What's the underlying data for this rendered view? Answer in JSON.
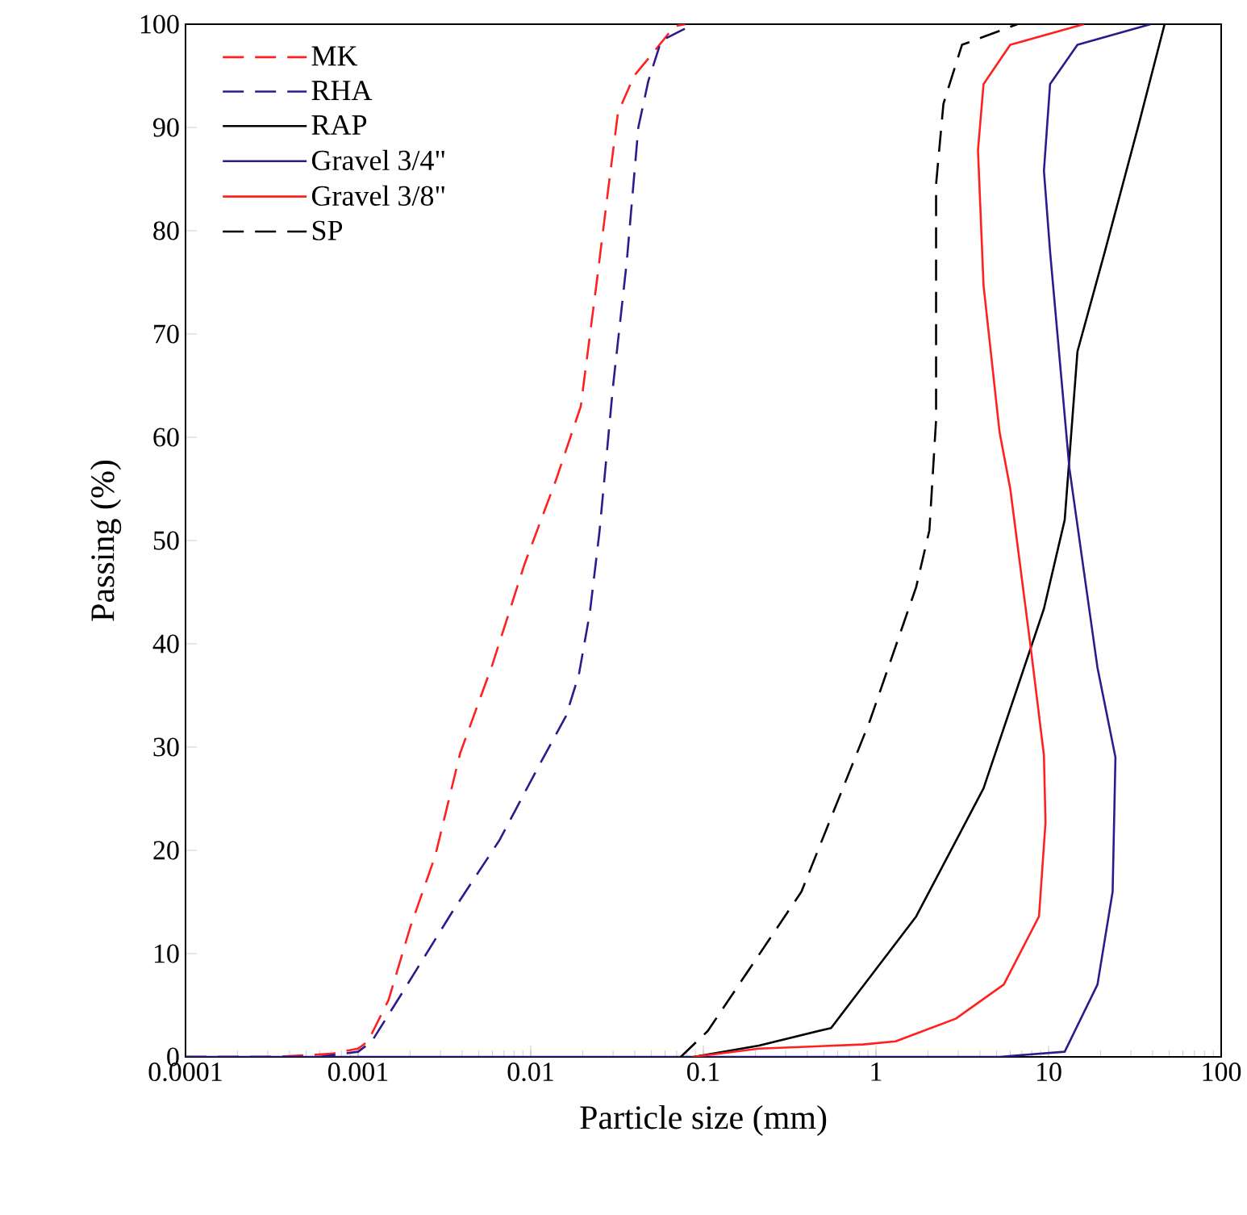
{
  "chart_data": {
    "type": "line",
    "xlabel": "Particle size (mm)",
    "ylabel": "Passing (%)",
    "log": "x",
    "xlim": [
      0.0001,
      100
    ],
    "ylim": [
      0,
      100
    ],
    "xticks": [
      0.0001,
      0.001,
      0.01,
      0.1,
      1,
      10,
      100
    ],
    "yticks": [
      0,
      10,
      20,
      30,
      40,
      50,
      60,
      70,
      80,
      90,
      100
    ],
    "grid": false,
    "legend": "top left",
    "marker": "none",
    "series": [
      {
        "name": "MK",
        "color": "#ff2020",
        "line_style": "dashed",
        "x": [
          0.0001,
          0.00033,
          0.0007,
          0.001,
          0.00114,
          0.0015,
          0.002,
          0.0028,
          0.0039,
          0.006,
          0.0092,
          0.0141,
          0.0195,
          0.0241,
          0.0281,
          0.032,
          0.0397,
          0.051,
          0.068,
          0.079
        ],
        "values": [
          0,
          0,
          0.3,
          0.8,
          1.5,
          5.5,
          12.5,
          19.5,
          29.4,
          38,
          47.7,
          56,
          63,
          75,
          84,
          91.4,
          95,
          97.2,
          99.8,
          100
        ]
      },
      {
        "name": "RHA",
        "color": "#2e1a8c",
        "line_style": "dashed",
        "x": [
          0.0001,
          0.0006,
          0.001,
          0.0012,
          0.0018,
          0.0035,
          0.0066,
          0.011,
          0.016,
          0.019,
          0.022,
          0.025,
          0.03,
          0.036,
          0.042,
          0.048,
          0.057,
          0.088
        ],
        "values": [
          0,
          0,
          0.5,
          1.5,
          6.2,
          14,
          21,
          28,
          33,
          37,
          43,
          50.8,
          65,
          77,
          90,
          94.5,
          98.4,
          100
        ]
      },
      {
        "name": "RAP",
        "color": "#000000",
        "line_style": "solid",
        "x": [
          0.088,
          0.21,
          0.55,
          1.71,
          4.2,
          9.4,
          12.4,
          14.7,
          21.2,
          33.3,
          47
        ],
        "values": [
          0,
          1.1,
          2.8,
          13.6,
          26,
          43.4,
          52,
          68.3,
          78,
          90.3,
          100
        ]
      },
      {
        "name": "Gravel 3/4\"",
        "color": "#2e1a8c",
        "line_style": "solid",
        "x": [
          0.0001,
          5.2,
          12.4,
          19.2,
          23.5,
          24.4,
          19.2,
          13.2,
          10.2,
          9.4,
          10.2,
          14.7,
          39
        ],
        "values": [
          0,
          0,
          0.5,
          7,
          16,
          29,
          37.7,
          57,
          78,
          85.8,
          94.2,
          98,
          100
        ]
      },
      {
        "name": "Gravel 3/8\"",
        "color": "#ff2020",
        "line_style": "solid",
        "x": [
          0.087,
          0.21,
          0.84,
          1.3,
          2.9,
          5.5,
          8.8,
          9.6,
          9.4,
          7.9,
          6.0,
          5.2,
          4.2,
          3.9,
          4.2,
          6.0,
          16
        ],
        "values": [
          0,
          0.8,
          1.2,
          1.5,
          3.7,
          7,
          13.6,
          22.7,
          29.2,
          39.5,
          55,
          60.5,
          74.7,
          87.8,
          94.2,
          98,
          100
        ]
      },
      {
        "name": "SP",
        "color": "#000000",
        "line_style": "dashed",
        "x": [
          0.074,
          0.106,
          0.37,
          0.92,
          1.71,
          2.04,
          2.23,
          2.23,
          2.46,
          3.15,
          6.6
        ],
        "values": [
          0,
          2.5,
          16,
          32.5,
          45.5,
          51,
          61.7,
          84.5,
          92.3,
          98,
          100
        ]
      }
    ]
  }
}
